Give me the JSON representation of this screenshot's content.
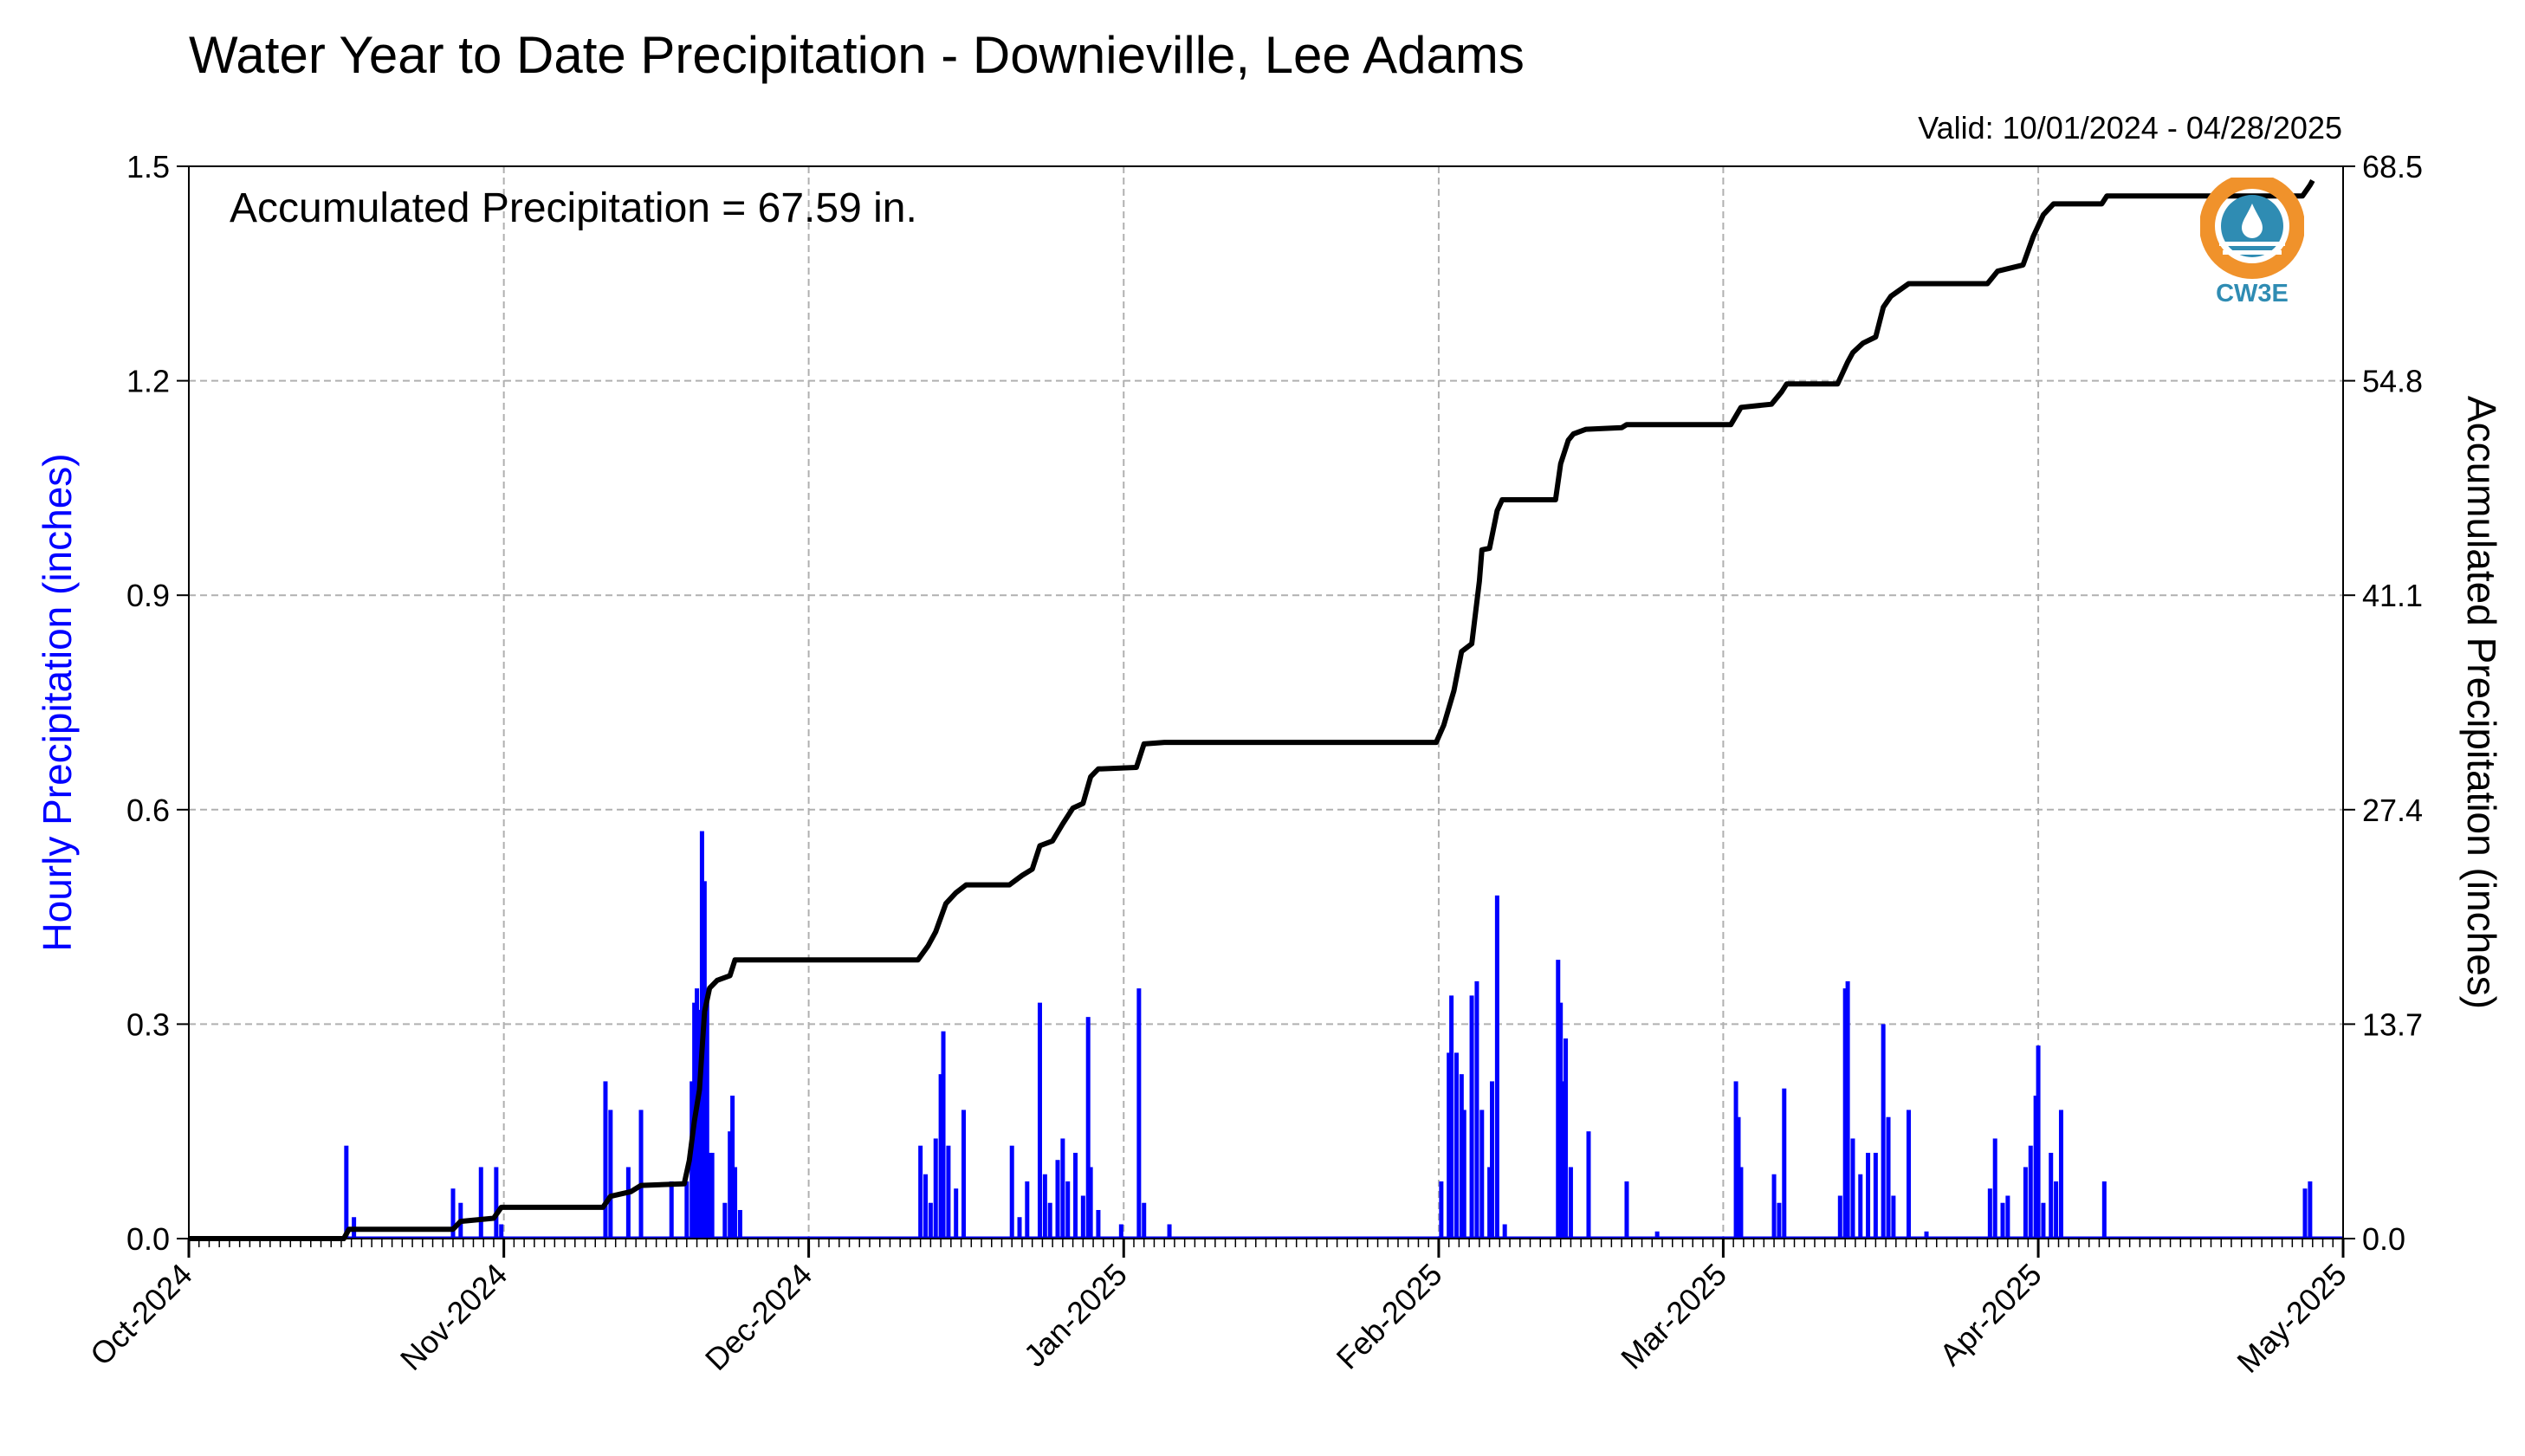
{
  "colors": {
    "hourly": "#0000ff",
    "accumulated": "#000000",
    "grid": "#b0b0b0",
    "logo_orange": "#f0922b",
    "logo_blue": "#2f8cb3"
  },
  "logo": {
    "text": "CW3E"
  },
  "chart_data": {
    "type": "bar",
    "title": "Water Year to Date Precipitation - Downieville, Lee Adams",
    "subtitle": "Valid: 10/01/2024 - 04/28/2025",
    "annotation": "Accumulated Precipitation = 67.59 in.",
    "ylabel": "Hourly Precipitation (inches)",
    "y2label": "Accumulated Precipitation (inches)",
    "x_range": [
      "2024-10-01",
      "2025-05-01"
    ],
    "ylim": [
      0,
      1.5
    ],
    "y2lim": [
      0,
      68.5
    ],
    "yticks": [
      "0.0",
      "0.3",
      "0.6",
      "0.9",
      "1.2",
      "1.5"
    ],
    "y2ticks": [
      "0.0",
      "13.7",
      "27.4",
      "41.1",
      "54.8",
      "68.5"
    ],
    "xticks": [
      {
        "date": "2024-10-01",
        "label": "Oct-2024"
      },
      {
        "date": "2024-11-01",
        "label": "Nov-2024"
      },
      {
        "date": "2024-12-01",
        "label": "Dec-2024"
      },
      {
        "date": "2025-01-01",
        "label": "Jan-2025"
      },
      {
        "date": "2025-02-01",
        "label": "Feb-2025"
      },
      {
        "date": "2025-03-01",
        "label": "Mar-2025"
      },
      {
        "date": "2025-04-01",
        "label": "Apr-2025"
      },
      {
        "date": "2025-05-01",
        "label": "May-2025"
      }
    ],
    "grid": true,
    "series": [
      {
        "kind": "bar",
        "axis": "left",
        "points": [
          [
            "2024-10-16T12",
            0.13
          ],
          [
            "2024-10-17T06",
            0.03
          ],
          [
            "2024-10-27T00",
            0.07
          ],
          [
            "2024-10-27T18",
            0.05
          ],
          [
            "2024-10-29T18",
            0.1
          ],
          [
            "2024-10-31T06",
            0.1
          ],
          [
            "2024-10-31T18",
            0.02
          ],
          [
            "2024-11-11T00",
            0.22
          ],
          [
            "2024-11-11T12",
            0.18
          ],
          [
            "2024-11-13T06",
            0.1
          ],
          [
            "2024-11-14T12",
            0.18
          ],
          [
            "2024-11-17T12",
            0.08
          ],
          [
            "2024-11-19T00",
            0.08
          ],
          [
            "2024-11-19T12",
            0.22
          ],
          [
            "2024-11-19T18",
            0.33
          ],
          [
            "2024-11-20T00",
            0.35
          ],
          [
            "2024-11-20T06",
            0.32
          ],
          [
            "2024-11-20T12",
            0.57
          ],
          [
            "2024-11-20T18",
            0.5
          ],
          [
            "2024-11-21T00",
            0.35
          ],
          [
            "2024-11-21T06",
            0.12
          ],
          [
            "2024-11-21T12",
            0.12
          ],
          [
            "2024-11-22T18",
            0.05
          ],
          [
            "2024-11-23T06",
            0.15
          ],
          [
            "2024-11-23T12",
            0.2
          ],
          [
            "2024-11-23T18",
            0.1
          ],
          [
            "2024-11-24T06",
            0.04
          ],
          [
            "2024-12-12T00",
            0.13
          ],
          [
            "2024-12-12T12",
            0.09
          ],
          [
            "2024-12-13T00",
            0.05
          ],
          [
            "2024-12-13T12",
            0.14
          ],
          [
            "2024-12-14T00",
            0.23
          ],
          [
            "2024-12-14T06",
            0.29
          ],
          [
            "2024-12-14T18",
            0.13
          ],
          [
            "2024-12-15T12",
            0.07
          ],
          [
            "2024-12-16T06",
            0.18
          ],
          [
            "2024-12-21T00",
            0.13
          ],
          [
            "2024-12-21T18",
            0.03
          ],
          [
            "2024-12-22T12",
            0.08
          ],
          [
            "2024-12-23T18",
            0.33
          ],
          [
            "2024-12-24T06",
            0.09
          ],
          [
            "2024-12-24T18",
            0.05
          ],
          [
            "2024-12-25T12",
            0.11
          ],
          [
            "2024-12-26T00",
            0.14
          ],
          [
            "2024-12-26T12",
            0.08
          ],
          [
            "2024-12-27T06",
            0.12
          ],
          [
            "2024-12-28T00",
            0.06
          ],
          [
            "2024-12-28T12",
            0.31
          ],
          [
            "2024-12-28T18",
            0.1
          ],
          [
            "2024-12-29T12",
            0.04
          ],
          [
            "2024-12-31T18",
            0.02
          ],
          [
            "2025-01-02T12",
            0.35
          ],
          [
            "2025-01-03T00",
            0.05
          ],
          [
            "2025-01-05T12",
            0.02
          ],
          [
            "2025-02-01T06",
            0.08
          ],
          [
            "2025-02-02T00",
            0.26
          ],
          [
            "2025-02-02T06",
            0.34
          ],
          [
            "2025-02-02T18",
            0.26
          ],
          [
            "2025-02-03T06",
            0.23
          ],
          [
            "2025-02-03T12",
            0.18
          ],
          [
            "2025-02-04T06",
            0.34
          ],
          [
            "2025-02-04T18",
            0.36
          ],
          [
            "2025-02-05T06",
            0.18
          ],
          [
            "2025-02-06T00",
            0.1
          ],
          [
            "2025-02-06T06",
            0.22
          ],
          [
            "2025-02-06T18",
            0.48
          ],
          [
            "2025-02-07T12",
            0.02
          ],
          [
            "2025-02-12T18",
            0.39
          ],
          [
            "2025-02-13T00",
            0.33
          ],
          [
            "2025-02-13T06",
            0.22
          ],
          [
            "2025-02-13T12",
            0.28
          ],
          [
            "2025-02-14T00",
            0.1
          ],
          [
            "2025-02-15T18",
            0.15
          ],
          [
            "2025-02-19T12",
            0.08
          ],
          [
            "2025-02-22T12",
            0.01
          ],
          [
            "2025-03-02T06",
            0.22
          ],
          [
            "2025-03-02T12",
            0.17
          ],
          [
            "2025-03-02T18",
            0.1
          ],
          [
            "2025-03-06T00",
            0.09
          ],
          [
            "2025-03-06T12",
            0.05
          ],
          [
            "2025-03-07T00",
            0.21
          ],
          [
            "2025-03-12T12",
            0.06
          ],
          [
            "2025-03-13T00",
            0.35
          ],
          [
            "2025-03-13T06",
            0.36
          ],
          [
            "2025-03-13T18",
            0.14
          ],
          [
            "2025-03-14T12",
            0.09
          ],
          [
            "2025-03-15T06",
            0.12
          ],
          [
            "2025-03-16T00",
            0.12
          ],
          [
            "2025-03-16T18",
            0.3
          ],
          [
            "2025-03-17T06",
            0.17
          ],
          [
            "2025-03-17T18",
            0.06
          ],
          [
            "2025-03-19T06",
            0.18
          ],
          [
            "2025-03-21T00",
            0.01
          ],
          [
            "2025-03-27T06",
            0.07
          ],
          [
            "2025-03-27T18",
            0.14
          ],
          [
            "2025-03-28T12",
            0.05
          ],
          [
            "2025-03-29T00",
            0.06
          ],
          [
            "2025-03-30T18",
            0.1
          ],
          [
            "2025-03-31T06",
            0.13
          ],
          [
            "2025-03-31T18",
            0.2
          ],
          [
            "2025-04-01T00",
            0.27
          ],
          [
            "2025-04-01T12",
            0.05
          ],
          [
            "2025-04-02T06",
            0.12
          ],
          [
            "2025-04-02T18",
            0.08
          ],
          [
            "2025-04-03T06",
            0.18
          ],
          [
            "2025-04-07T12",
            0.08
          ],
          [
            "2025-04-27T06",
            0.07
          ],
          [
            "2025-04-27T18",
            0.08
          ]
        ]
      },
      {
        "kind": "line",
        "axis": "right",
        "points": [
          [
            "2024-10-01",
            0.0
          ],
          [
            "2024-10-16T06",
            0.0
          ],
          [
            "2024-10-16T18",
            0.6
          ],
          [
            "2024-10-27T00",
            0.6
          ],
          [
            "2024-10-27T18",
            1.1
          ],
          [
            "2024-10-31T00",
            1.3
          ],
          [
            "2024-10-31T18",
            2.0
          ],
          [
            "2024-11-10T18",
            2.0
          ],
          [
            "2024-11-11T12",
            2.7
          ],
          [
            "2024-11-13T12",
            3.0
          ],
          [
            "2024-11-14T12",
            3.4
          ],
          [
            "2024-11-18T18",
            3.5
          ],
          [
            "2024-11-19T06",
            5.0
          ],
          [
            "2024-11-19T18",
            7.5
          ],
          [
            "2024-11-20T06",
            9.5
          ],
          [
            "2024-11-20T12",
            12.0
          ],
          [
            "2024-11-20T18",
            14.5
          ],
          [
            "2024-11-21T06",
            16.0
          ],
          [
            "2024-11-22T00",
            16.5
          ],
          [
            "2024-11-23T06",
            16.8
          ],
          [
            "2024-11-23T18",
            17.8
          ],
          [
            "2024-12-11T18",
            17.8
          ],
          [
            "2024-12-12T18",
            18.7
          ],
          [
            "2024-12-13T12",
            19.6
          ],
          [
            "2024-12-14T12",
            21.4
          ],
          [
            "2024-12-15T12",
            22.1
          ],
          [
            "2024-12-16T12",
            22.6
          ],
          [
            "2024-12-20T18",
            22.6
          ],
          [
            "2024-12-22T00",
            23.2
          ],
          [
            "2024-12-23T00",
            23.6
          ],
          [
            "2024-12-23T18",
            25.1
          ],
          [
            "2024-12-25T00",
            25.4
          ],
          [
            "2024-12-26T00",
            26.5
          ],
          [
            "2024-12-27T00",
            27.5
          ],
          [
            "2024-12-28T00",
            27.8
          ],
          [
            "2024-12-28T18",
            29.5
          ],
          [
            "2024-12-29T12",
            30.0
          ],
          [
            "2025-01-02T06",
            30.1
          ],
          [
            "2025-01-03T00",
            31.6
          ],
          [
            "2025-01-05T00",
            31.7
          ],
          [
            "2025-01-31T18",
            31.7
          ],
          [
            "2025-02-01T12",
            32.8
          ],
          [
            "2025-02-02T12",
            35.0
          ],
          [
            "2025-02-03T06",
            37.5
          ],
          [
            "2025-02-04T06",
            38.0
          ],
          [
            "2025-02-05T00",
            42.0
          ],
          [
            "2025-02-05T06",
            44.0
          ],
          [
            "2025-02-06T00",
            44.1
          ],
          [
            "2025-02-06T18",
            46.5
          ],
          [
            "2025-02-07T06",
            47.2
          ],
          [
            "2025-02-12T12",
            47.2
          ],
          [
            "2025-02-13T00",
            49.5
          ],
          [
            "2025-02-13T18",
            51.0
          ],
          [
            "2025-02-14T06",
            51.4
          ],
          [
            "2025-02-15T12",
            51.7
          ],
          [
            "2025-02-19T00",
            51.8
          ],
          [
            "2025-02-19T12",
            52.0
          ],
          [
            "2025-03-01T18",
            52.0
          ],
          [
            "2025-03-02T18",
            53.1
          ],
          [
            "2025-03-05T18",
            53.3
          ],
          [
            "2025-03-06T18",
            54.1
          ],
          [
            "2025-03-07T06",
            54.6
          ],
          [
            "2025-03-12T06",
            54.6
          ],
          [
            "2025-03-13T06",
            56.0
          ],
          [
            "2025-03-13T18",
            56.6
          ],
          [
            "2025-03-14T18",
            57.2
          ],
          [
            "2025-03-16T00",
            57.6
          ],
          [
            "2025-03-16T18",
            59.5
          ],
          [
            "2025-03-17T12",
            60.2
          ],
          [
            "2025-03-19T06",
            61.0
          ],
          [
            "2025-03-27T00",
            61.0
          ],
          [
            "2025-03-28T00",
            61.8
          ],
          [
            "2025-03-30T12",
            62.2
          ],
          [
            "2025-03-31T12",
            64.0
          ],
          [
            "2025-04-01T12",
            65.4
          ],
          [
            "2025-04-02T12",
            66.1
          ],
          [
            "2025-04-07T06",
            66.1
          ],
          [
            "2025-04-07T18",
            66.6
          ],
          [
            "2025-04-27T00",
            66.6
          ],
          [
            "2025-04-27T18",
            67.3
          ],
          [
            "2025-04-28T00",
            67.59
          ]
        ]
      }
    ]
  }
}
